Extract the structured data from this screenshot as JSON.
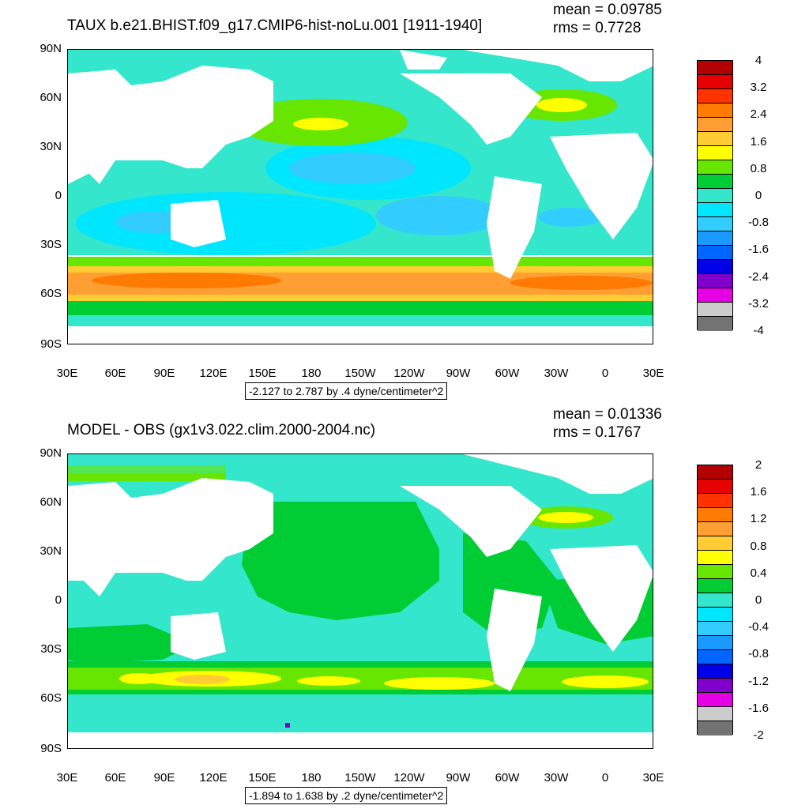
{
  "panels": [
    {
      "title": "TAUX b.e21.BHIST.f09_g17.CMIP6-hist-noLu.001 [1911-1940]",
      "mean": "mean = 0.09785",
      "rms": "rms = 0.7728",
      "range": "-2.127 to 2.787 by .4 dyne/centimeter^2",
      "colorbar_labels": [
        "4",
        "3.2",
        "2.4",
        "1.6",
        "0.8",
        "0",
        "-0.8",
        "-1.6",
        "-2.4",
        "-3.2",
        "-4"
      ],
      "colorbar_colors": [
        "#b30000",
        "#e60000",
        "#ff3300",
        "#ff7a00",
        "#ff9f33",
        "#ffcc33",
        "#ffff00",
        "#66e600",
        "#00cc33",
        "#33e6cc",
        "#00e6ff",
        "#33ccff",
        "#1a99ff",
        "#0066ff",
        "#0000e6",
        "#8000cc",
        "#e600e6",
        "#cccccc",
        "#737373"
      ]
    },
    {
      "title": "MODEL - OBS (gx1v3.022.clim.2000-2004.nc)",
      "mean": "mean = 0.01336",
      "rms": "rms = 0.1767",
      "range": "-1.894 to 1.638 by .2 dyne/centimeter^2",
      "colorbar_labels": [
        "2",
        "1.6",
        "1.2",
        "0.8",
        "0.4",
        "0",
        "-0.4",
        "-0.8",
        "-1.2",
        "-1.6",
        "-2"
      ],
      "colorbar_colors": [
        "#b30000",
        "#e60000",
        "#ff3300",
        "#ff7a00",
        "#ff9f33",
        "#ffcc33",
        "#ffff00",
        "#66e600",
        "#00cc33",
        "#33e6cc",
        "#00e6ff",
        "#33ccff",
        "#1a99ff",
        "#0066ff",
        "#0000e6",
        "#8000cc",
        "#e600e6",
        "#cccccc",
        "#737373"
      ]
    }
  ],
  "lat_labels": [
    "90N",
    "60N",
    "30N",
    "0",
    "30S",
    "60S",
    "90S"
  ],
  "lon_labels": [
    "30E",
    "60E",
    "90E",
    "120E",
    "150E",
    "180",
    "150W",
    "120W",
    "90W",
    "60W",
    "30W",
    "0",
    "30E"
  ]
}
